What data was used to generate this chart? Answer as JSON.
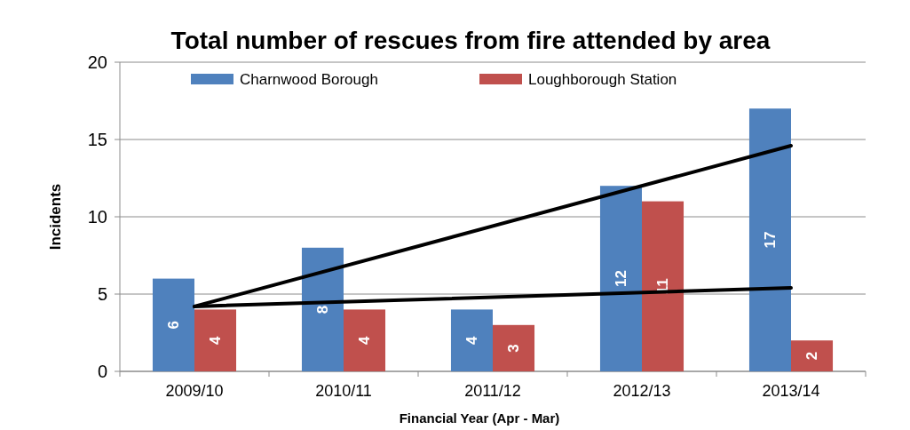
{
  "chart_data": {
    "type": "bar",
    "title": "Total number of rescues from fire attended by area",
    "xlabel": "Financial Year (Apr - Mar)",
    "ylabel": "Incidents",
    "categories": [
      "2009/10",
      "2010/11",
      "2011/12",
      "2012/13",
      "2013/14"
    ],
    "series": [
      {
        "name": "Charnwood Borough",
        "color": "#4f81bd",
        "values": [
          6,
          8,
          4,
          12,
          17
        ],
        "value_labels": [
          "6",
          "8",
          "4",
          "12",
          "17"
        ]
      },
      {
        "name": "Loughborough Station",
        "color": "#c0504d",
        "values": [
          4,
          4,
          3,
          11,
          2
        ],
        "value_labels": [
          "4",
          "4",
          "3",
          "11",
          "2"
        ]
      },
      {
        "type": "line",
        "color": "#000000",
        "x": [
          "2009/10",
          "2013/14"
        ],
        "values": [
          4.2,
          14.6
        ]
      },
      {
        "type": "line",
        "color": "#000000",
        "x": [
          "2009/10",
          "2013/14"
        ],
        "values": [
          4.2,
          5.4
        ]
      }
    ],
    "ylim": [
      0,
      20
    ],
    "yticks": [
      0,
      5,
      10,
      15,
      20
    ],
    "grid": "y",
    "legend": "top"
  }
}
